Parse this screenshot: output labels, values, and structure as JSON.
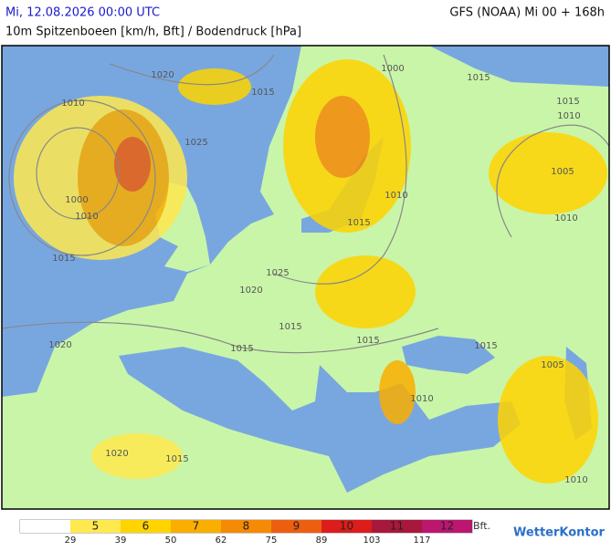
{
  "header": {
    "date": "Mi, 12.08.2026 00:00 UTC",
    "model": "GFS (NOAA) Mi 00 + 168h",
    "subtitle": "10m Spitzenboeen [km/h, Bft] / Bodendruck [hPa]"
  },
  "isobar_labels": [
    "1020",
    "1015",
    "1010",
    "1025",
    "1000",
    "1015",
    "1015",
    "1010",
    "1005",
    "1000",
    "1010",
    "1010",
    "1015",
    "1010",
    "1015",
    "1025",
    "1020",
    "1015",
    "1020",
    "1015",
    "1015",
    "1015",
    "1005",
    "1010",
    "1020",
    "1015",
    "1010"
  ],
  "legend": {
    "bft": [
      "5",
      "6",
      "7",
      "8",
      "9",
      "10",
      "11",
      "12"
    ],
    "unit": "Bft.",
    "kmh": [
      "29",
      "39",
      "50",
      "62",
      "75",
      "89",
      "103",
      "117"
    ],
    "colors": [
      "#ffe94f",
      "#ffd400",
      "#f9ae00",
      "#f58a05",
      "#ec5f10",
      "#dd1c1c",
      "#a8173c",
      "#bb1670"
    ]
  },
  "logo": "WetterKontor"
}
